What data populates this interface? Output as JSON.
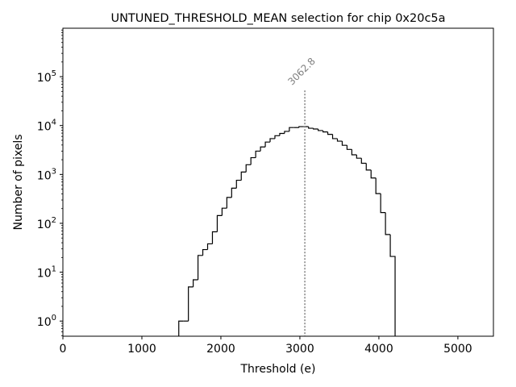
{
  "chart_data": {
    "type": "histogram",
    "title": "UNTUNED_THRESHOLD_MEAN selection for chip 0x20c5a",
    "xlabel": "Threshold (e)",
    "ylabel": "Number of pixels",
    "xlim": [
      0,
      5450
    ],
    "ylim": [
      0.49,
      980000
    ],
    "yscale": "log",
    "xticks": [
      0,
      1000,
      2000,
      3000,
      4000,
      5000
    ],
    "xtick_labels": [
      "0",
      "1000",
      "2000",
      "3000",
      "4000",
      "5000"
    ],
    "yticks": [
      1,
      10,
      100,
      1000,
      10000,
      100000
    ],
    "ytick_labels": [
      {
        "base": "10",
        "exp": "0"
      },
      {
        "base": "10",
        "exp": "1"
      },
      {
        "base": "10",
        "exp": "2"
      },
      {
        "base": "10",
        "exp": "3"
      },
      {
        "base": "10",
        "exp": "4"
      },
      {
        "base": "10",
        "exp": "5"
      }
    ],
    "bin_start": 1467,
    "bin_width": 60.85,
    "values": [
      1,
      1,
      5,
      7,
      22,
      29,
      38,
      67,
      144,
      204,
      338,
      524,
      760,
      1120,
      1580,
      2200,
      3000,
      3650,
      4600,
      5400,
      6200,
      6900,
      7600,
      9100,
      9100,
      9500,
      9500,
      8800,
      8500,
      7900,
      7400,
      6600,
      5400,
      4800,
      3950,
      3250,
      2520,
      2150,
      1690,
      1230,
      845,
      405,
      166,
      59,
      21
    ],
    "line_color": "#000000",
    "marker": {
      "x": 3062.8,
      "label": "3062.8",
      "ymax": 52000,
      "color": "#808080",
      "style": "dotted"
    },
    "grid": false,
    "legend": "none"
  }
}
